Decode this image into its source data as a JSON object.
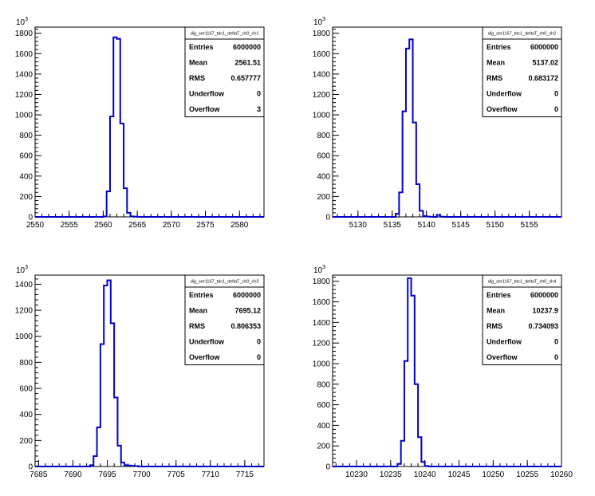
{
  "chart_data": [
    {
      "type": "histogram",
      "stats_box": {
        "title": "dig_ser1167_tdc1_deltaT_ch0_ch1",
        "rows": [
          {
            "label": "Entries",
            "value": "6000000"
          },
          {
            "label": "Mean",
            "value": "2561.51"
          },
          {
            "label": "RMS",
            "value": "0.657777"
          },
          {
            "label": "Underflow",
            "value": "0"
          },
          {
            "label": "Overflow",
            "value": "3"
          }
        ]
      },
      "y_exponent": "10",
      "y_exponent_power": "3",
      "xlim": [
        2550,
        2583.6
      ],
      "ylim": [
        0,
        1860
      ],
      "x_ticks": [
        2550,
        2555,
        2560,
        2565,
        2570,
        2575,
        2580
      ],
      "x_tick_labels": [
        "2550",
        "2555",
        "2560",
        "2565",
        "2570",
        "2575",
        "2580"
      ],
      "y_ticks": [
        0,
        200,
        400,
        600,
        800,
        1000,
        1200,
        1400,
        1600,
        1800
      ],
      "y_tick_labels": [
        "0",
        "200",
        "400",
        "600",
        "800",
        "1000",
        "1200",
        "1400",
        "1600",
        "1800"
      ],
      "bin_width": 0.5,
      "bins": [
        {
          "x": 2560.0,
          "y": 5
        },
        {
          "x": 2560.5,
          "y": 250
        },
        {
          "x": 2561.0,
          "y": 985
        },
        {
          "x": 2561.5,
          "y": 1760
        },
        {
          "x": 2562.0,
          "y": 1745
        },
        {
          "x": 2562.5,
          "y": 915
        },
        {
          "x": 2563.0,
          "y": 280
        },
        {
          "x": 2563.5,
          "y": 40
        },
        {
          "x": 2564.0,
          "y": 5
        },
        {
          "x": 2564.5,
          "y": 2
        },
        {
          "x": 2565.0,
          "y": 1
        }
      ]
    },
    {
      "type": "histogram",
      "stats_box": {
        "title": "dig_ser1167_tdc1_deltaT_ch0_ch2",
        "rows": [
          {
            "label": "Entries",
            "value": "6000000"
          },
          {
            "label": "Mean",
            "value": "5137.02"
          },
          {
            "label": "RMS",
            "value": "0.683172"
          },
          {
            "label": "Underflow",
            "value": "0"
          },
          {
            "label": "Overflow",
            "value": "0"
          }
        ]
      },
      "y_exponent": "10",
      "y_exponent_power": "3",
      "xlim": [
        5126.3,
        5159.7
      ],
      "ylim": [
        0,
        1860
      ],
      "x_ticks": [
        5130,
        5135,
        5140,
        5145,
        5150,
        5155
      ],
      "x_tick_labels": [
        "5130",
        "5135",
        "5140",
        "5145",
        "5150",
        "5155"
      ],
      "y_ticks": [
        0,
        200,
        400,
        600,
        800,
        1000,
        1200,
        1400,
        1600,
        1800
      ],
      "y_tick_labels": [
        "0",
        "200",
        "400",
        "600",
        "800",
        "1000",
        "1200",
        "1400",
        "1600",
        "1800"
      ],
      "bin_width": 0.5,
      "bins": [
        {
          "x": 5135.5,
          "y": 30
        },
        {
          "x": 5136.0,
          "y": 240
        },
        {
          "x": 5136.5,
          "y": 1035
        },
        {
          "x": 5137.0,
          "y": 1650
        },
        {
          "x": 5137.5,
          "y": 1740
        },
        {
          "x": 5138.0,
          "y": 925
        },
        {
          "x": 5138.5,
          "y": 320
        },
        {
          "x": 5139.0,
          "y": 60
        },
        {
          "x": 5139.5,
          "y": 8
        },
        {
          "x": 5140.0,
          "y": 3
        },
        {
          "x": 5140.5,
          "y": 1
        },
        {
          "x": 5141.5,
          "y": 20
        },
        {
          "x": 5142.0,
          "y": 2
        }
      ]
    },
    {
      "type": "histogram",
      "stats_box": {
        "title": "dig_ser1167_tdc1_deltaT_ch0_ch3",
        "rows": [
          {
            "label": "Entries",
            "value": "6000000"
          },
          {
            "label": "Mean",
            "value": "7695.12"
          },
          {
            "label": "RMS",
            "value": "0.806353"
          },
          {
            "label": "Underflow",
            "value": "0"
          },
          {
            "label": "Overflow",
            "value": "0"
          }
        ]
      },
      "y_exponent": "10",
      "y_exponent_power": "3",
      "xlim": [
        7684.5,
        7717.8
      ],
      "ylim": [
        0,
        1470
      ],
      "x_ticks": [
        7685,
        7690,
        7695,
        7700,
        7705,
        7710,
        7715
      ],
      "x_tick_labels": [
        "7685",
        "7690",
        "7695",
        "7700",
        "7705",
        "7710",
        "7715"
      ],
      "y_ticks": [
        0,
        200,
        400,
        600,
        800,
        1000,
        1200,
        1400
      ],
      "y_tick_labels": [
        "0",
        "200",
        "400",
        "600",
        "800",
        "1000",
        "1200",
        "1400"
      ],
      "bin_width": 0.5,
      "bins": [
        {
          "x": 7692.5,
          "y": 10
        },
        {
          "x": 7693.0,
          "y": 80
        },
        {
          "x": 7693.5,
          "y": 300
        },
        {
          "x": 7694.0,
          "y": 940
        },
        {
          "x": 7694.5,
          "y": 1390
        },
        {
          "x": 7695.0,
          "y": 1430
        },
        {
          "x": 7695.5,
          "y": 1100
        },
        {
          "x": 7696.0,
          "y": 530
        },
        {
          "x": 7696.5,
          "y": 160
        },
        {
          "x": 7697.0,
          "y": 30
        },
        {
          "x": 7697.5,
          "y": 10
        },
        {
          "x": 7698.0,
          "y": 8
        },
        {
          "x": 7698.5,
          "y": 5
        },
        {
          "x": 7699.0,
          "y": 3
        }
      ]
    },
    {
      "type": "histogram",
      "stats_box": {
        "title": "dig_ser1167_tdc1_deltaT_ch0_ch4",
        "rows": [
          {
            "label": "Entries",
            "value": "6000000"
          },
          {
            "label": "Mean",
            "value": "10237.9"
          },
          {
            "label": "RMS",
            "value": "0.734093"
          },
          {
            "label": "Underflow",
            "value": "0"
          },
          {
            "label": "Overflow",
            "value": "0"
          }
        ]
      },
      "y_exponent": "10",
      "y_exponent_power": "3",
      "xlim": [
        10226.5,
        10260
      ],
      "ylim": [
        0,
        1860
      ],
      "x_ticks": [
        10230,
        10235,
        10240,
        10245,
        10250,
        10255,
        10260
      ],
      "x_tick_labels": [
        "10230",
        "10235",
        "10240",
        "10245",
        "10250",
        "10255",
        "10260"
      ],
      "y_ticks": [
        0,
        200,
        400,
        600,
        800,
        1000,
        1200,
        1400,
        1600,
        1800
      ],
      "y_tick_labels": [
        "0",
        "200",
        "400",
        "600",
        "800",
        "1000",
        "1200",
        "1400",
        "1600",
        "1800"
      ],
      "bin_width": 0.5,
      "bins": [
        {
          "x": 10236.0,
          "y": 25
        },
        {
          "x": 10236.5,
          "y": 250
        },
        {
          "x": 10237.0,
          "y": 1025
        },
        {
          "x": 10237.5,
          "y": 1830
        },
        {
          "x": 10238.0,
          "y": 1660
        },
        {
          "x": 10238.5,
          "y": 800
        },
        {
          "x": 10239.0,
          "y": 285
        },
        {
          "x": 10239.5,
          "y": 45
        },
        {
          "x": 10240.0,
          "y": 5
        },
        {
          "x": 10240.5,
          "y": 1
        }
      ]
    }
  ],
  "colors": {
    "histogram_line": "#0000cc",
    "axis": "#000000",
    "background": "#ffffff"
  }
}
